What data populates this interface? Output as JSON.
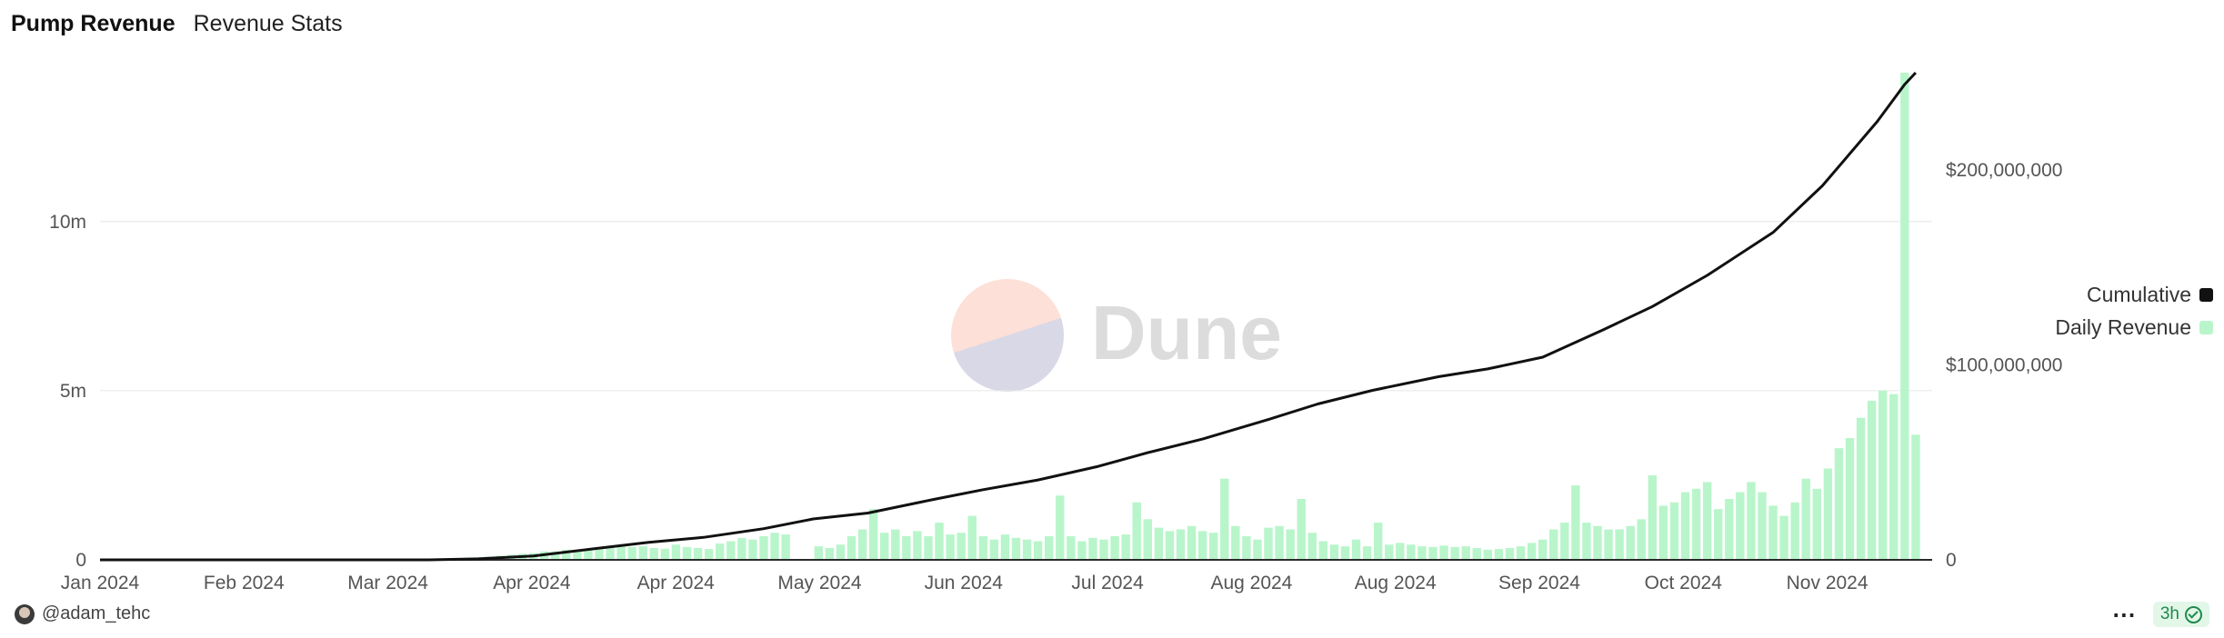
{
  "header": {
    "title": "Pump Revenue",
    "subtitle": "Revenue Stats"
  },
  "watermark": {
    "text": "Dune"
  },
  "legend": [
    {
      "label": "Cumulative",
      "color": "#111111"
    },
    {
      "label": "Daily Revenue",
      "color": "#b9f5cb"
    }
  ],
  "footer": {
    "author": "@adam_tehc",
    "freshness": "3h",
    "menu_icon": "more-dots-icon"
  },
  "chart_data": {
    "type": "bar+line",
    "x_start": "2024-01-01",
    "x_end": "2024-11-30",
    "x_tick_labels": [
      "Jan 2024",
      "Feb 2024",
      "Mar 2024",
      "Apr 2024",
      "Apr 2024",
      "May 2024",
      "Jun 2024",
      "Jul 2024",
      "Aug 2024",
      "Aug 2024",
      "Sep 2024",
      "Oct 2024",
      "Nov 2024"
    ],
    "y_left": {
      "ticks": [
        0,
        5000000,
        10000000
      ],
      "tick_labels": [
        "0",
        "5m",
        "10m"
      ],
      "ylim": [
        0,
        14400000
      ]
    },
    "y_right": {
      "ticks": [
        0,
        100000000,
        200000000
      ],
      "tick_labels": [
        "0",
        "$100,000,000",
        "$200,000,000"
      ],
      "ylim": [
        0,
        250000000
      ]
    },
    "grid": true,
    "legend_position": "right",
    "series": [
      {
        "name": "Daily Revenue",
        "type": "bar",
        "axis": "left",
        "color": "#b9f5cb",
        "points": [
          [
            "2024-03-04",
            20000
          ],
          [
            "2024-03-06",
            40000
          ],
          [
            "2024-03-08",
            60000
          ],
          [
            "2024-03-10",
            80000
          ],
          [
            "2024-03-12",
            100000
          ],
          [
            "2024-03-14",
            120000
          ],
          [
            "2024-03-16",
            150000
          ],
          [
            "2024-03-18",
            180000
          ],
          [
            "2024-03-20",
            200000
          ],
          [
            "2024-03-22",
            250000
          ],
          [
            "2024-03-24",
            250000
          ],
          [
            "2024-03-26",
            300000
          ],
          [
            "2024-03-28",
            280000
          ],
          [
            "2024-03-30",
            300000
          ],
          [
            "2024-04-01",
            350000
          ],
          [
            "2024-04-03",
            400000
          ],
          [
            "2024-04-05",
            420000
          ],
          [
            "2024-04-07",
            380000
          ],
          [
            "2024-04-09",
            400000
          ],
          [
            "2024-04-11",
            350000
          ],
          [
            "2024-04-13",
            330000
          ],
          [
            "2024-04-15",
            450000
          ],
          [
            "2024-04-17",
            380000
          ],
          [
            "2024-04-19",
            350000
          ],
          [
            "2024-04-21",
            320000
          ],
          [
            "2024-04-23",
            480000
          ],
          [
            "2024-04-25",
            550000
          ],
          [
            "2024-04-27",
            650000
          ],
          [
            "2024-04-29",
            600000
          ],
          [
            "2024-05-01",
            700000
          ],
          [
            "2024-05-03",
            800000
          ],
          [
            "2024-05-05",
            750000
          ],
          [
            "2024-05-07",
            0
          ],
          [
            "2024-05-09",
            0
          ],
          [
            "2024-05-11",
            400000
          ],
          [
            "2024-05-13",
            350000
          ],
          [
            "2024-05-15",
            450000
          ],
          [
            "2024-05-17",
            700000
          ],
          [
            "2024-05-19",
            900000
          ],
          [
            "2024-05-21",
            1500000
          ],
          [
            "2024-05-23",
            800000
          ],
          [
            "2024-05-25",
            900000
          ],
          [
            "2024-05-27",
            700000
          ],
          [
            "2024-05-29",
            850000
          ],
          [
            "2024-05-31",
            700000
          ],
          [
            "2024-06-02",
            1100000
          ],
          [
            "2024-06-04",
            750000
          ],
          [
            "2024-06-06",
            800000
          ],
          [
            "2024-06-08",
            1300000
          ],
          [
            "2024-06-10",
            700000
          ],
          [
            "2024-06-12",
            600000
          ],
          [
            "2024-06-14",
            750000
          ],
          [
            "2024-06-16",
            650000
          ],
          [
            "2024-06-18",
            600000
          ],
          [
            "2024-06-20",
            550000
          ],
          [
            "2024-06-22",
            700000
          ],
          [
            "2024-06-24",
            1900000
          ],
          [
            "2024-06-26",
            700000
          ],
          [
            "2024-06-28",
            550000
          ],
          [
            "2024-06-30",
            650000
          ],
          [
            "2024-07-02",
            600000
          ],
          [
            "2024-07-04",
            700000
          ],
          [
            "2024-07-06",
            750000
          ],
          [
            "2024-07-08",
            1700000
          ],
          [
            "2024-07-10",
            1200000
          ],
          [
            "2024-07-12",
            950000
          ],
          [
            "2024-07-14",
            850000
          ],
          [
            "2024-07-16",
            900000
          ],
          [
            "2024-07-18",
            1000000
          ],
          [
            "2024-07-20",
            850000
          ],
          [
            "2024-07-22",
            800000
          ],
          [
            "2024-07-24",
            2400000
          ],
          [
            "2024-07-26",
            1000000
          ],
          [
            "2024-07-28",
            700000
          ],
          [
            "2024-07-30",
            600000
          ],
          [
            "2024-08-01",
            950000
          ],
          [
            "2024-08-03",
            1000000
          ],
          [
            "2024-08-05",
            900000
          ],
          [
            "2024-08-07",
            1800000
          ],
          [
            "2024-08-09",
            800000
          ],
          [
            "2024-08-11",
            550000
          ],
          [
            "2024-08-13",
            450000
          ],
          [
            "2024-08-15",
            400000
          ],
          [
            "2024-08-17",
            600000
          ],
          [
            "2024-08-19",
            400000
          ],
          [
            "2024-08-21",
            1100000
          ],
          [
            "2024-08-23",
            450000
          ],
          [
            "2024-08-25",
            500000
          ],
          [
            "2024-08-27",
            450000
          ],
          [
            "2024-08-29",
            400000
          ],
          [
            "2024-08-31",
            380000
          ],
          [
            "2024-09-02",
            420000
          ],
          [
            "2024-09-04",
            380000
          ],
          [
            "2024-09-06",
            400000
          ],
          [
            "2024-09-08",
            350000
          ],
          [
            "2024-09-10",
            300000
          ],
          [
            "2024-09-12",
            320000
          ],
          [
            "2024-09-14",
            350000
          ],
          [
            "2024-09-16",
            400000
          ],
          [
            "2024-09-18",
            500000
          ],
          [
            "2024-09-20",
            600000
          ],
          [
            "2024-09-22",
            900000
          ],
          [
            "2024-09-24",
            1100000
          ],
          [
            "2024-09-26",
            2200000
          ],
          [
            "2024-09-28",
            1100000
          ],
          [
            "2024-09-30",
            1000000
          ],
          [
            "2024-10-02",
            900000
          ],
          [
            "2024-10-04",
            900000
          ],
          [
            "2024-10-06",
            1000000
          ],
          [
            "2024-10-08",
            1200000
          ],
          [
            "2024-10-10",
            2500000
          ],
          [
            "2024-10-12",
            1600000
          ],
          [
            "2024-10-14",
            1700000
          ],
          [
            "2024-10-16",
            2000000
          ],
          [
            "2024-10-18",
            2100000
          ],
          [
            "2024-10-20",
            2300000
          ],
          [
            "2024-10-22",
            1500000
          ],
          [
            "2024-10-24",
            1800000
          ],
          [
            "2024-10-26",
            2000000
          ],
          [
            "2024-10-28",
            2300000
          ],
          [
            "2024-10-30",
            2000000
          ],
          [
            "2024-11-01",
            1600000
          ],
          [
            "2024-11-03",
            1300000
          ],
          [
            "2024-11-05",
            1700000
          ],
          [
            "2024-11-07",
            2400000
          ],
          [
            "2024-11-09",
            2100000
          ],
          [
            "2024-11-11",
            2700000
          ],
          [
            "2024-11-13",
            3300000
          ],
          [
            "2024-11-15",
            3600000
          ],
          [
            "2024-11-17",
            4200000
          ],
          [
            "2024-11-19",
            4700000
          ],
          [
            "2024-11-21",
            5000000
          ],
          [
            "2024-11-23",
            4900000
          ],
          [
            "2024-11-25",
            14400000
          ],
          [
            "2024-11-27",
            3700000
          ]
        ]
      },
      {
        "name": "Cumulative",
        "type": "line",
        "axis": "right",
        "color": "#111111",
        "points": [
          [
            "2024-01-01",
            0
          ],
          [
            "2024-03-01",
            0
          ],
          [
            "2024-03-10",
            500000
          ],
          [
            "2024-03-20",
            2000000
          ],
          [
            "2024-04-01",
            6000000
          ],
          [
            "2024-04-10",
            9000000
          ],
          [
            "2024-04-20",
            11500000
          ],
          [
            "2024-05-01",
            16000000
          ],
          [
            "2024-05-10",
            21000000
          ],
          [
            "2024-05-20",
            24000000
          ],
          [
            "2024-06-01",
            31000000
          ],
          [
            "2024-06-10",
            36000000
          ],
          [
            "2024-06-20",
            41000000
          ],
          [
            "2024-07-01",
            48000000
          ],
          [
            "2024-07-10",
            55000000
          ],
          [
            "2024-07-20",
            62000000
          ],
          [
            "2024-08-01",
            72000000
          ],
          [
            "2024-08-10",
            80000000
          ],
          [
            "2024-08-20",
            87000000
          ],
          [
            "2024-09-01",
            94000000
          ],
          [
            "2024-09-10",
            98000000
          ],
          [
            "2024-09-20",
            104000000
          ],
          [
            "2024-10-01",
            118000000
          ],
          [
            "2024-10-10",
            130000000
          ],
          [
            "2024-10-20",
            146000000
          ],
          [
            "2024-11-01",
            168000000
          ],
          [
            "2024-11-10",
            192000000
          ],
          [
            "2024-11-20",
            225000000
          ],
          [
            "2024-11-25",
            244000000
          ],
          [
            "2024-11-27",
            250000000
          ]
        ]
      }
    ]
  }
}
